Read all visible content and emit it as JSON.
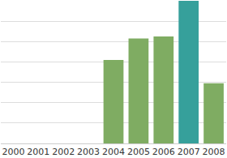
{
  "chart_data": {
    "type": "bar",
    "categories": [
      "2000",
      "2001",
      "2002",
      "2003",
      "2004",
      "2005",
      "2006",
      "2007",
      "2008"
    ],
    "values": [
      null,
      null,
      null,
      null,
      4.1,
      5.15,
      5.25,
      7.0,
      2.95
    ],
    "colors": [
      "#7fac62",
      "#7fac62",
      "#7fac62",
      "#7fac62",
      "#7fac62",
      "#7fac62",
      "#7fac62",
      "#36a09b",
      "#7fac62"
    ],
    "ylim": [
      0,
      7
    ],
    "yticks": [
      0,
      1,
      2,
      3,
      4,
      5,
      6,
      7
    ],
    "grid": true,
    "tick_labels": "x"
  }
}
